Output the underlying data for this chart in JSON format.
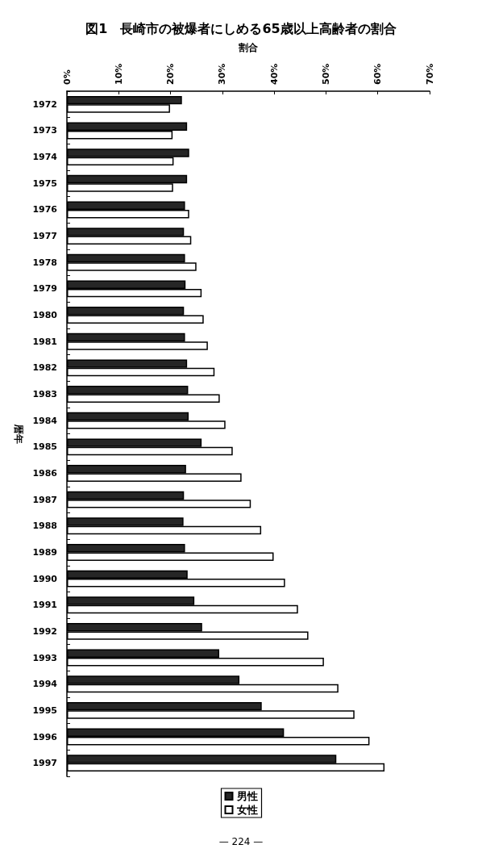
{
  "chart_data": {
    "type": "bar",
    "orientation": "horizontal",
    "title": "図1　長崎市の被爆者にしめる65歳以上高齢者の割合",
    "xlabel": "割合",
    "ylabel": "暦年",
    "categories": [
      "1972",
      "1973",
      "1974",
      "1975",
      "1976",
      "1977",
      "1978",
      "1979",
      "1980",
      "1981",
      "1982",
      "1983",
      "1984",
      "1985",
      "1986",
      "1987",
      "1988",
      "1989",
      "1990",
      "1991",
      "1992",
      "1993",
      "1994",
      "1995",
      "1996",
      "1997"
    ],
    "series": [
      {
        "name": "男性",
        "color": "#262626",
        "values": [
          22.2,
          23.2,
          23.6,
          23.2,
          22.8,
          22.6,
          22.8,
          22.9,
          22.6,
          22.8,
          23.2,
          23.4,
          23.5,
          26.0,
          23.0,
          22.6,
          22.5,
          22.8,
          23.3,
          24.6,
          26.1,
          29.4,
          33.3,
          37.6,
          41.9,
          52.0
        ]
      },
      {
        "name": "女性",
        "color": "#ffffff",
        "values": [
          19.9,
          20.4,
          20.6,
          20.5,
          23.6,
          24.0,
          25.0,
          26.0,
          26.4,
          27.2,
          28.5,
          29.5,
          30.6,
          32.0,
          33.7,
          35.5,
          37.5,
          39.9,
          42.1,
          44.6,
          46.6,
          49.6,
          52.4,
          55.5,
          58.4,
          61.3
        ]
      }
    ],
    "xlim": [
      0,
      70
    ],
    "xticks": [
      {
        "value": 0,
        "label": "0%"
      },
      {
        "value": 10,
        "label": "10%"
      },
      {
        "value": 20,
        "label": "20%"
      },
      {
        "value": 30,
        "label": "30%"
      },
      {
        "value": 40,
        "label": "40%"
      },
      {
        "value": 50,
        "label": "50%"
      },
      {
        "value": 60,
        "label": "60%"
      },
      {
        "value": 70,
        "label": "70%"
      }
    ],
    "legend": "bottom",
    "annotations": [
      "— 224 —"
    ]
  }
}
